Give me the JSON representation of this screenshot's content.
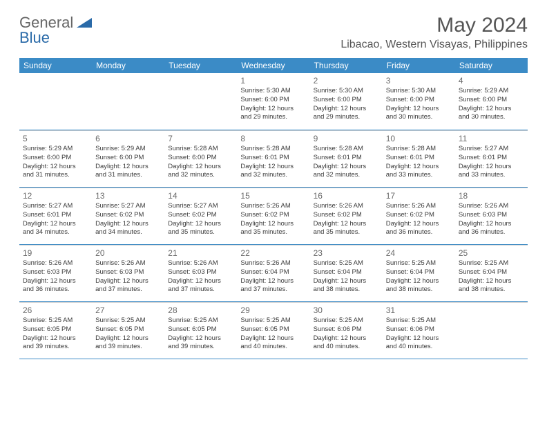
{
  "colors": {
    "header_bg": "#3b8bc6",
    "header_text": "#ffffff",
    "title_text": "#555555",
    "logo_gray": "#666666",
    "logo_blue": "#2a6aa8",
    "day_num": "#6a6a6a",
    "info_text": "#3a3a3a",
    "row_border": "#3b8bc6",
    "cell_border": "#cccccc",
    "background": "#ffffff"
  },
  "logo": {
    "text_general": "General",
    "text_blue": "Blue"
  },
  "title": "May 2024",
  "location": "Libacao, Western Visayas, Philippines",
  "weekdays": [
    "Sunday",
    "Monday",
    "Tuesday",
    "Wednesday",
    "Thursday",
    "Friday",
    "Saturday"
  ],
  "weeks": [
    [
      {
        "n": "",
        "lines": []
      },
      {
        "n": "",
        "lines": []
      },
      {
        "n": "",
        "lines": []
      },
      {
        "n": "1",
        "lines": [
          "Sunrise: 5:30 AM",
          "Sunset: 6:00 PM",
          "Daylight: 12 hours",
          "and 29 minutes."
        ]
      },
      {
        "n": "2",
        "lines": [
          "Sunrise: 5:30 AM",
          "Sunset: 6:00 PM",
          "Daylight: 12 hours",
          "and 29 minutes."
        ]
      },
      {
        "n": "3",
        "lines": [
          "Sunrise: 5:30 AM",
          "Sunset: 6:00 PM",
          "Daylight: 12 hours",
          "and 30 minutes."
        ]
      },
      {
        "n": "4",
        "lines": [
          "Sunrise: 5:29 AM",
          "Sunset: 6:00 PM",
          "Daylight: 12 hours",
          "and 30 minutes."
        ]
      }
    ],
    [
      {
        "n": "5",
        "lines": [
          "Sunrise: 5:29 AM",
          "Sunset: 6:00 PM",
          "Daylight: 12 hours",
          "and 31 minutes."
        ]
      },
      {
        "n": "6",
        "lines": [
          "Sunrise: 5:29 AM",
          "Sunset: 6:00 PM",
          "Daylight: 12 hours",
          "and 31 minutes."
        ]
      },
      {
        "n": "7",
        "lines": [
          "Sunrise: 5:28 AM",
          "Sunset: 6:00 PM",
          "Daylight: 12 hours",
          "and 32 minutes."
        ]
      },
      {
        "n": "8",
        "lines": [
          "Sunrise: 5:28 AM",
          "Sunset: 6:01 PM",
          "Daylight: 12 hours",
          "and 32 minutes."
        ]
      },
      {
        "n": "9",
        "lines": [
          "Sunrise: 5:28 AM",
          "Sunset: 6:01 PM",
          "Daylight: 12 hours",
          "and 32 minutes."
        ]
      },
      {
        "n": "10",
        "lines": [
          "Sunrise: 5:28 AM",
          "Sunset: 6:01 PM",
          "Daylight: 12 hours",
          "and 33 minutes."
        ]
      },
      {
        "n": "11",
        "lines": [
          "Sunrise: 5:27 AM",
          "Sunset: 6:01 PM",
          "Daylight: 12 hours",
          "and 33 minutes."
        ]
      }
    ],
    [
      {
        "n": "12",
        "lines": [
          "Sunrise: 5:27 AM",
          "Sunset: 6:01 PM",
          "Daylight: 12 hours",
          "and 34 minutes."
        ]
      },
      {
        "n": "13",
        "lines": [
          "Sunrise: 5:27 AM",
          "Sunset: 6:02 PM",
          "Daylight: 12 hours",
          "and 34 minutes."
        ]
      },
      {
        "n": "14",
        "lines": [
          "Sunrise: 5:27 AM",
          "Sunset: 6:02 PM",
          "Daylight: 12 hours",
          "and 35 minutes."
        ]
      },
      {
        "n": "15",
        "lines": [
          "Sunrise: 5:26 AM",
          "Sunset: 6:02 PM",
          "Daylight: 12 hours",
          "and 35 minutes."
        ]
      },
      {
        "n": "16",
        "lines": [
          "Sunrise: 5:26 AM",
          "Sunset: 6:02 PM",
          "Daylight: 12 hours",
          "and 35 minutes."
        ]
      },
      {
        "n": "17",
        "lines": [
          "Sunrise: 5:26 AM",
          "Sunset: 6:02 PM",
          "Daylight: 12 hours",
          "and 36 minutes."
        ]
      },
      {
        "n": "18",
        "lines": [
          "Sunrise: 5:26 AM",
          "Sunset: 6:03 PM",
          "Daylight: 12 hours",
          "and 36 minutes."
        ]
      }
    ],
    [
      {
        "n": "19",
        "lines": [
          "Sunrise: 5:26 AM",
          "Sunset: 6:03 PM",
          "Daylight: 12 hours",
          "and 36 minutes."
        ]
      },
      {
        "n": "20",
        "lines": [
          "Sunrise: 5:26 AM",
          "Sunset: 6:03 PM",
          "Daylight: 12 hours",
          "and 37 minutes."
        ]
      },
      {
        "n": "21",
        "lines": [
          "Sunrise: 5:26 AM",
          "Sunset: 6:03 PM",
          "Daylight: 12 hours",
          "and 37 minutes."
        ]
      },
      {
        "n": "22",
        "lines": [
          "Sunrise: 5:26 AM",
          "Sunset: 6:04 PM",
          "Daylight: 12 hours",
          "and 37 minutes."
        ]
      },
      {
        "n": "23",
        "lines": [
          "Sunrise: 5:25 AM",
          "Sunset: 6:04 PM",
          "Daylight: 12 hours",
          "and 38 minutes."
        ]
      },
      {
        "n": "24",
        "lines": [
          "Sunrise: 5:25 AM",
          "Sunset: 6:04 PM",
          "Daylight: 12 hours",
          "and 38 minutes."
        ]
      },
      {
        "n": "25",
        "lines": [
          "Sunrise: 5:25 AM",
          "Sunset: 6:04 PM",
          "Daylight: 12 hours",
          "and 38 minutes."
        ]
      }
    ],
    [
      {
        "n": "26",
        "lines": [
          "Sunrise: 5:25 AM",
          "Sunset: 6:05 PM",
          "Daylight: 12 hours",
          "and 39 minutes."
        ]
      },
      {
        "n": "27",
        "lines": [
          "Sunrise: 5:25 AM",
          "Sunset: 6:05 PM",
          "Daylight: 12 hours",
          "and 39 minutes."
        ]
      },
      {
        "n": "28",
        "lines": [
          "Sunrise: 5:25 AM",
          "Sunset: 6:05 PM",
          "Daylight: 12 hours",
          "and 39 minutes."
        ]
      },
      {
        "n": "29",
        "lines": [
          "Sunrise: 5:25 AM",
          "Sunset: 6:05 PM",
          "Daylight: 12 hours",
          "and 40 minutes."
        ]
      },
      {
        "n": "30",
        "lines": [
          "Sunrise: 5:25 AM",
          "Sunset: 6:06 PM",
          "Daylight: 12 hours",
          "and 40 minutes."
        ]
      },
      {
        "n": "31",
        "lines": [
          "Sunrise: 5:25 AM",
          "Sunset: 6:06 PM",
          "Daylight: 12 hours",
          "and 40 minutes."
        ]
      },
      {
        "n": "",
        "lines": []
      }
    ]
  ]
}
